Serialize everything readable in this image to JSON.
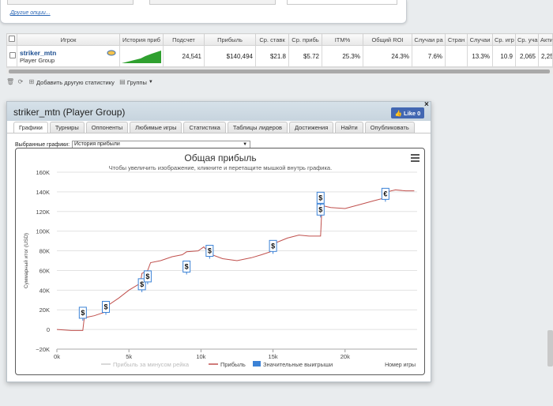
{
  "top_panel": {
    "other_options": "Другие опции..."
  },
  "table": {
    "headers": [
      "Игрок",
      "История приб",
      "Подсчет",
      "Прибыль",
      "Ср. ставк",
      "Ср. прибь",
      "ITM%",
      "Общий ROI",
      "Случаи ра",
      "Стран",
      "Случаи",
      "Ср. игр",
      "Ср. уча",
      "Активн"
    ],
    "row": {
      "name": "striker_mtn",
      "group": "Player Group",
      "count": "24,541",
      "profit": "$140,494",
      "avg_stake": "$21.8",
      "avg_profit": "$5.72",
      "itm": "25.3%",
      "roi": "24.3%",
      "cases": "7.6%",
      "country": "",
      "cases2": "13.3%",
      "avg_games": "10.9",
      "avg_part": "2,065",
      "active": "2,25"
    }
  },
  "toolbar": {
    "add_stat": "Добавить другую статистику",
    "groups": "Группы"
  },
  "window": {
    "title": "striker_mtn (Player Group)",
    "like_label": "Like 0",
    "close": "×",
    "tabs": [
      "Графики",
      "Турниры",
      "Оппоненты",
      "Любимые игры",
      "Статистика",
      "Таблицы лидеров",
      "Достижения",
      "Найти",
      "Опубликовать"
    ],
    "select_label": "Выбранные графики:",
    "select_value": "История прибыли"
  },
  "chart_data": {
    "type": "line",
    "title": "Общая прибыль",
    "subtitle": "Чтобы увеличить изображение, кликните и перетащите мышкой внутрь графика.",
    "xlabel": "Номер игры",
    "ylabel": "Суммарный итог (USD)",
    "xlim": [
      0,
      25000
    ],
    "ylim": [
      -20000,
      160000
    ],
    "x_ticks": [
      "0k",
      "5k",
      "10k",
      "15k",
      "20k"
    ],
    "y_ticks": [
      "−20K",
      "0",
      "20K",
      "40K",
      "60K",
      "80K",
      "100K",
      "120K",
      "140K",
      "160K"
    ],
    "legend": [
      "Прибыль за минусом рейка",
      "Прибыль",
      "Значительные выигрыши"
    ],
    "series": [
      {
        "name": "Прибыль",
        "color": "#c0504d",
        "x": [
          0,
          1000,
          1800,
          1900,
          2600,
          3400,
          3500,
          4300,
          5000,
          5800,
          5900,
          6300,
          6500,
          7200,
          8000,
          8700,
          9000,
          9800,
          10200,
          10600,
          11500,
          12500,
          13500,
          14200,
          14800,
          15000,
          16000,
          16800,
          17500,
          18300,
          18400,
          19000,
          20000,
          21000,
          22000,
          22800,
          22900,
          23500,
          24200,
          24800
        ],
        "values": [
          0,
          -1000,
          -1000,
          12000,
          14000,
          18000,
          24000,
          32000,
          40000,
          47000,
          57000,
          60000,
          68000,
          70000,
          74000,
          76000,
          79000,
          80000,
          84000,
          77000,
          72000,
          70000,
          73000,
          76000,
          79000,
          87000,
          93000,
          96000,
          95000,
          95000,
          126000,
          124000,
          123000,
          127000,
          131000,
          134000,
          140000,
          142000,
          141000,
          141000
        ]
      }
    ],
    "big_wins": [
      {
        "x": 1800,
        "y": 17000,
        "label": "$"
      },
      {
        "x": 3400,
        "y": 23000,
        "label": "$"
      },
      {
        "x": 5900,
        "y": 46000,
        "label": "$"
      },
      {
        "x": 6300,
        "y": 54000,
        "label": "$"
      },
      {
        "x": 9000,
        "y": 64000,
        "label": "$"
      },
      {
        "x": 10600,
        "y": 80000,
        "label": "$"
      },
      {
        "x": 15000,
        "y": 85000,
        "label": "$"
      },
      {
        "x": 18300,
        "y": 122000,
        "label": "$"
      },
      {
        "x": 18300,
        "y": 134000,
        "label": "$"
      },
      {
        "x": 22800,
        "y": 138000,
        "label": "€"
      }
    ],
    "colors": {
      "profit": "#c0504d",
      "rake": "#cccccc",
      "wins": "#3b82d6"
    }
  }
}
